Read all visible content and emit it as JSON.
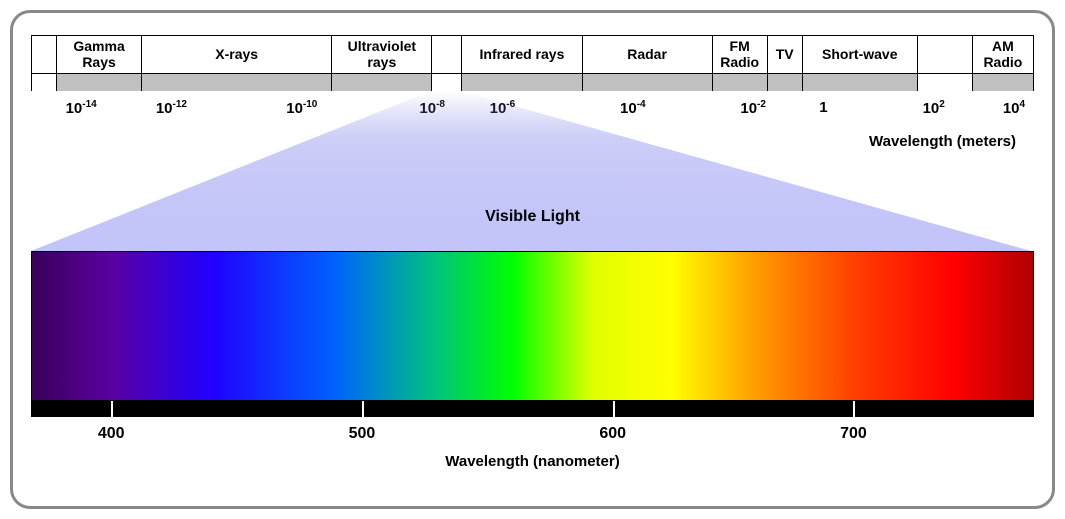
{
  "diagram": {
    "type": "infographic",
    "border_color": "#888888",
    "border_radius": 20,
    "background": "#ffffff"
  },
  "top_spectrum": {
    "bands": [
      {
        "label": "",
        "width_pct": 2.5,
        "gap": true
      },
      {
        "label": "Gamma Rays",
        "width_pct": 8.5
      },
      {
        "label": "X-rays",
        "width_pct": 19.0
      },
      {
        "label": "Ultraviolet rays",
        "width_pct": 10.0
      },
      {
        "label": "",
        "width_pct": 3.0,
        "gap": true
      },
      {
        "label": "Infrared rays",
        "width_pct": 12.0
      },
      {
        "label": "Radar",
        "width_pct": 13.0
      },
      {
        "label": "FM Radio",
        "width_pct": 5.5
      },
      {
        "label": "TV",
        "width_pct": 3.5
      },
      {
        "label": "Short-wave",
        "width_pct": 11.5
      },
      {
        "label": "",
        "width_pct": 5.5,
        "gap": true
      },
      {
        "label": "AM Radio",
        "width_pct": 6.0
      }
    ],
    "gray_fill": "#c0c0c0",
    "ticks": [
      {
        "base": "10",
        "exp": "-14",
        "pos_pct": 5
      },
      {
        "base": "10",
        "exp": "-12",
        "pos_pct": 14
      },
      {
        "base": "10",
        "exp": "-10",
        "pos_pct": 27
      },
      {
        "base": "10",
        "exp": "-8",
        "pos_pct": 40
      },
      {
        "base": "10",
        "exp": "-6",
        "pos_pct": 47
      },
      {
        "base": "10",
        "exp": "-4",
        "pos_pct": 60
      },
      {
        "base": "10",
        "exp": "-2",
        "pos_pct": 72
      },
      {
        "base": "1",
        "exp": "",
        "pos_pct": 79
      },
      {
        "base": "10",
        "exp": "2",
        "pos_pct": 90
      },
      {
        "base": "10",
        "exp": "4",
        "pos_pct": 98
      }
    ],
    "axis_label": "Wavelength (meters)"
  },
  "funnel": {
    "top_left_pct": 40,
    "top_right_pct": 43,
    "gradient_top": "#7a7de0",
    "gradient_bottom": "#ffffff"
  },
  "visible": {
    "label": "Visible Light",
    "gradient_stops": [
      {
        "pct": 0,
        "color": "#3a005a"
      },
      {
        "pct": 8,
        "color": "#5a00a0"
      },
      {
        "pct": 18,
        "color": "#2000ff"
      },
      {
        "pct": 30,
        "color": "#0060ff"
      },
      {
        "pct": 40,
        "color": "#00c080"
      },
      {
        "pct": 48,
        "color": "#00ff00"
      },
      {
        "pct": 56,
        "color": "#e0ff00"
      },
      {
        "pct": 64,
        "color": "#ffff00"
      },
      {
        "pct": 72,
        "color": "#ffa000"
      },
      {
        "pct": 82,
        "color": "#ff4000"
      },
      {
        "pct": 92,
        "color": "#ff0000"
      },
      {
        "pct": 100,
        "color": "#b00000"
      }
    ],
    "nm_ticks": [
      {
        "label": "400",
        "pos_pct": 8
      },
      {
        "label": "500",
        "pos_pct": 33
      },
      {
        "label": "600",
        "pos_pct": 58
      },
      {
        "label": "700",
        "pos_pct": 82
      }
    ],
    "axis_label": "Wavelength (nanometer)",
    "axis_bar_color": "#000000",
    "tick_color": "#ffffff"
  },
  "font": {
    "label_size_pt": 14,
    "tick_size_pt": 15,
    "weight": "bold",
    "color": "#000000"
  }
}
